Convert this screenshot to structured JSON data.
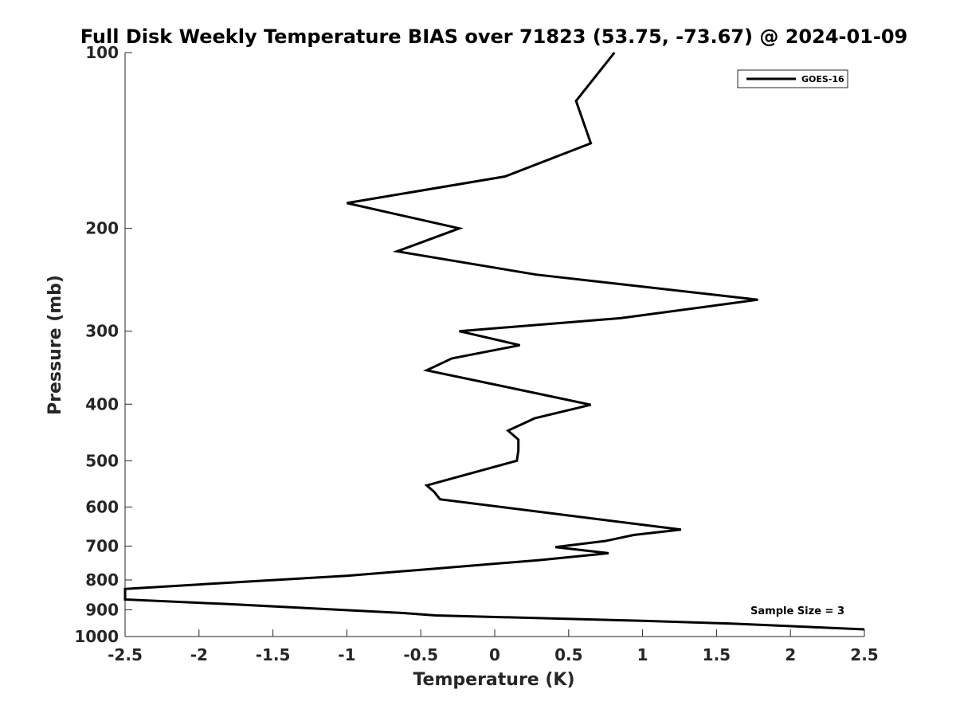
{
  "chart_data": {
    "type": "line",
    "title": "Full Disk Weekly Temperature BIAS over 71823 (53.75, -73.67) @ 2024-01-09",
    "xlabel": "Temperature (K)",
    "ylabel": "Pressure (mb)",
    "xlim": [
      -2.5,
      2.5
    ],
    "ylim": [
      1000,
      100
    ],
    "y_scale": "log",
    "y_reversed": true,
    "xticks": [
      "-2.5",
      "-2",
      "-1.5",
      "-1",
      "-0.5",
      "0",
      "0.5",
      "1",
      "1.5",
      "2",
      "2.5"
    ],
    "yticks": [
      "100",
      "200",
      "300",
      "400",
      "500",
      "600",
      "700",
      "800",
      "900",
      "1000"
    ],
    "grid": false,
    "legend_position": "top-right",
    "series": [
      {
        "name": "GOES-16",
        "color": "#000000",
        "points": [
          {
            "x": 0.81,
            "y": 100
          },
          {
            "x": 0.55,
            "y": 121
          },
          {
            "x": 0.65,
            "y": 143
          },
          {
            "x": 0.07,
            "y": 163
          },
          {
            "x": -1.0,
            "y": 181
          },
          {
            "x": -0.24,
            "y": 200
          },
          {
            "x": -0.66,
            "y": 219
          },
          {
            "x": 0.28,
            "y": 240
          },
          {
            "x": 1.78,
            "y": 265
          },
          {
            "x": 0.85,
            "y": 285
          },
          {
            "x": -0.24,
            "y": 300
          },
          {
            "x": 0.17,
            "y": 317
          },
          {
            "x": -0.29,
            "y": 334
          },
          {
            "x": -0.46,
            "y": 350
          },
          {
            "x": 0.15,
            "y": 377
          },
          {
            "x": 0.65,
            "y": 401
          },
          {
            "x": 0.27,
            "y": 423
          },
          {
            "x": 0.09,
            "y": 444
          },
          {
            "x": 0.16,
            "y": 460
          },
          {
            "x": 0.16,
            "y": 480
          },
          {
            "x": 0.15,
            "y": 500
          },
          {
            "x": -0.46,
            "y": 551
          },
          {
            "x": -0.41,
            "y": 565
          },
          {
            "x": -0.37,
            "y": 582
          },
          {
            "x": 1.26,
            "y": 656
          },
          {
            "x": 0.94,
            "y": 670
          },
          {
            "x": 0.75,
            "y": 686
          },
          {
            "x": 0.41,
            "y": 703
          },
          {
            "x": 0.77,
            "y": 720
          },
          {
            "x": 0.3,
            "y": 740
          },
          {
            "x": -0.4,
            "y": 765
          },
          {
            "x": -1.0,
            "y": 787
          },
          {
            "x": -1.6,
            "y": 803
          },
          {
            "x": -2.4,
            "y": 826
          },
          {
            "x": -2.5,
            "y": 829
          },
          {
            "x": -2.5,
            "y": 864
          },
          {
            "x": -1.8,
            "y": 880
          },
          {
            "x": -0.6,
            "y": 912
          },
          {
            "x": -0.4,
            "y": 920
          },
          {
            "x": 1.0,
            "y": 940
          },
          {
            "x": 1.6,
            "y": 950
          },
          {
            "x": 2.5,
            "y": 972
          }
        ]
      }
    ],
    "annotation": "Sample Size = 3"
  }
}
